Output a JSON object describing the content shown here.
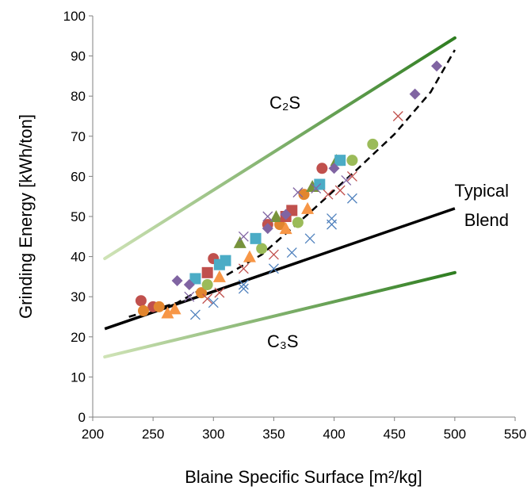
{
  "chart_data": {
    "type": "scatter",
    "title": "",
    "xlabel": "Blaine Specific Surface [m²/kg]",
    "ylabel": "Grinding Energy [kWh/ton]",
    "xlim": [
      200,
      550
    ],
    "ylim": [
      0,
      100
    ],
    "xticks": [
      200,
      250,
      300,
      350,
      400,
      450,
      500,
      550
    ],
    "yticks": [
      0,
      10,
      20,
      30,
      40,
      50,
      60,
      70,
      80,
      90,
      100
    ],
    "grid": false,
    "legend": "none",
    "annotations": {
      "c2s": "C₂S",
      "c3s": "C₃S",
      "typical_blend_line1": "Typical",
      "typical_blend_line2": "Blend"
    },
    "lines": [
      {
        "key": "c2s",
        "style": "green-gradient",
        "color_start": "#cfe3b6",
        "color_end": "#2e7d20",
        "x": [
          210,
          500
        ],
        "y": [
          39.5,
          94.5
        ]
      },
      {
        "key": "c3s",
        "style": "green-gradient",
        "color_start": "#cfe3b6",
        "color_end": "#2e7d20",
        "x": [
          210,
          500
        ],
        "y": [
          15.0,
          36.0
        ]
      },
      {
        "key": "typical_blend",
        "style": "solid",
        "color": "#000000",
        "x": [
          210,
          500
        ],
        "y": [
          22.0,
          52.0
        ]
      },
      {
        "key": "fit",
        "style": "dashed",
        "color": "#000000",
        "x": [
          230,
          270,
          300,
          340,
          380,
          420,
          450,
          480,
          500
        ],
        "y": [
          25.0,
          28.5,
          33.5,
          40.5,
          51.0,
          62.0,
          70.5,
          81.0,
          91.5
        ]
      }
    ],
    "series": [
      {
        "marker": "circle",
        "color": "#c0504d",
        "points": [
          [
            240,
            29
          ],
          [
            250,
            27.5
          ],
          [
            300,
            39.5
          ],
          [
            345,
            48
          ],
          [
            390,
            62
          ]
        ]
      },
      {
        "marker": "circle",
        "color": "#e2862f",
        "points": [
          [
            242,
            26.5
          ],
          [
            255,
            27.5
          ],
          [
            290,
            31
          ],
          [
            355,
            48
          ],
          [
            375,
            55.5
          ]
        ]
      },
      {
        "marker": "circle",
        "color": "#9bbb59",
        "points": [
          [
            295,
            33
          ],
          [
            340,
            42
          ],
          [
            370,
            48.5
          ],
          [
            415,
            64
          ],
          [
            432,
            68
          ]
        ]
      },
      {
        "marker": "triangle",
        "color": "#f79646",
        "points": [
          [
            262,
            26
          ],
          [
            268,
            27
          ],
          [
            305,
            35
          ],
          [
            330,
            40
          ],
          [
            360,
            47
          ],
          [
            378,
            52
          ]
        ]
      },
      {
        "marker": "triangle",
        "color": "#77933c",
        "points": [
          [
            322,
            43.5
          ],
          [
            352,
            50
          ],
          [
            382,
            57.5
          ],
          [
            402,
            64
          ]
        ]
      },
      {
        "marker": "square",
        "color": "#4bacc6",
        "points": [
          [
            285,
            34.5
          ],
          [
            305,
            38
          ],
          [
            310,
            39
          ],
          [
            335,
            44.5
          ],
          [
            388,
            58
          ],
          [
            405,
            64
          ]
        ]
      },
      {
        "marker": "square",
        "color": "#c0504d",
        "points": [
          [
            295,
            36
          ],
          [
            360,
            50
          ],
          [
            365,
            51.5
          ]
        ]
      },
      {
        "marker": "diamond",
        "color": "#8064a2",
        "points": [
          [
            270,
            34
          ],
          [
            280,
            33
          ],
          [
            345,
            47
          ],
          [
            360,
            50.5
          ],
          [
            400,
            62
          ],
          [
            467,
            80.5
          ],
          [
            485,
            87.5
          ]
        ]
      },
      {
        "marker": "x",
        "color": "#4f81bd",
        "points": [
          [
            285,
            25.5
          ],
          [
            300,
            28.5
          ],
          [
            325,
            32
          ],
          [
            325,
            33
          ],
          [
            350,
            37
          ],
          [
            365,
            41
          ],
          [
            380,
            44.5
          ],
          [
            398,
            48
          ],
          [
            398,
            49.5
          ],
          [
            415,
            54.5
          ]
        ]
      },
      {
        "marker": "x",
        "color": "#c0504d",
        "points": [
          [
            295,
            29.5
          ],
          [
            305,
            31
          ],
          [
            325,
            37
          ],
          [
            350,
            40.5
          ],
          [
            395,
            55.5
          ],
          [
            405,
            56.5
          ],
          [
            415,
            60
          ],
          [
            453,
            75
          ]
        ]
      },
      {
        "marker": "x",
        "color": "#8064a2",
        "points": [
          [
            280,
            30
          ],
          [
            325,
            45
          ],
          [
            345,
            50
          ],
          [
            370,
            56
          ],
          [
            385,
            57
          ],
          [
            410,
            59
          ]
        ]
      }
    ]
  }
}
